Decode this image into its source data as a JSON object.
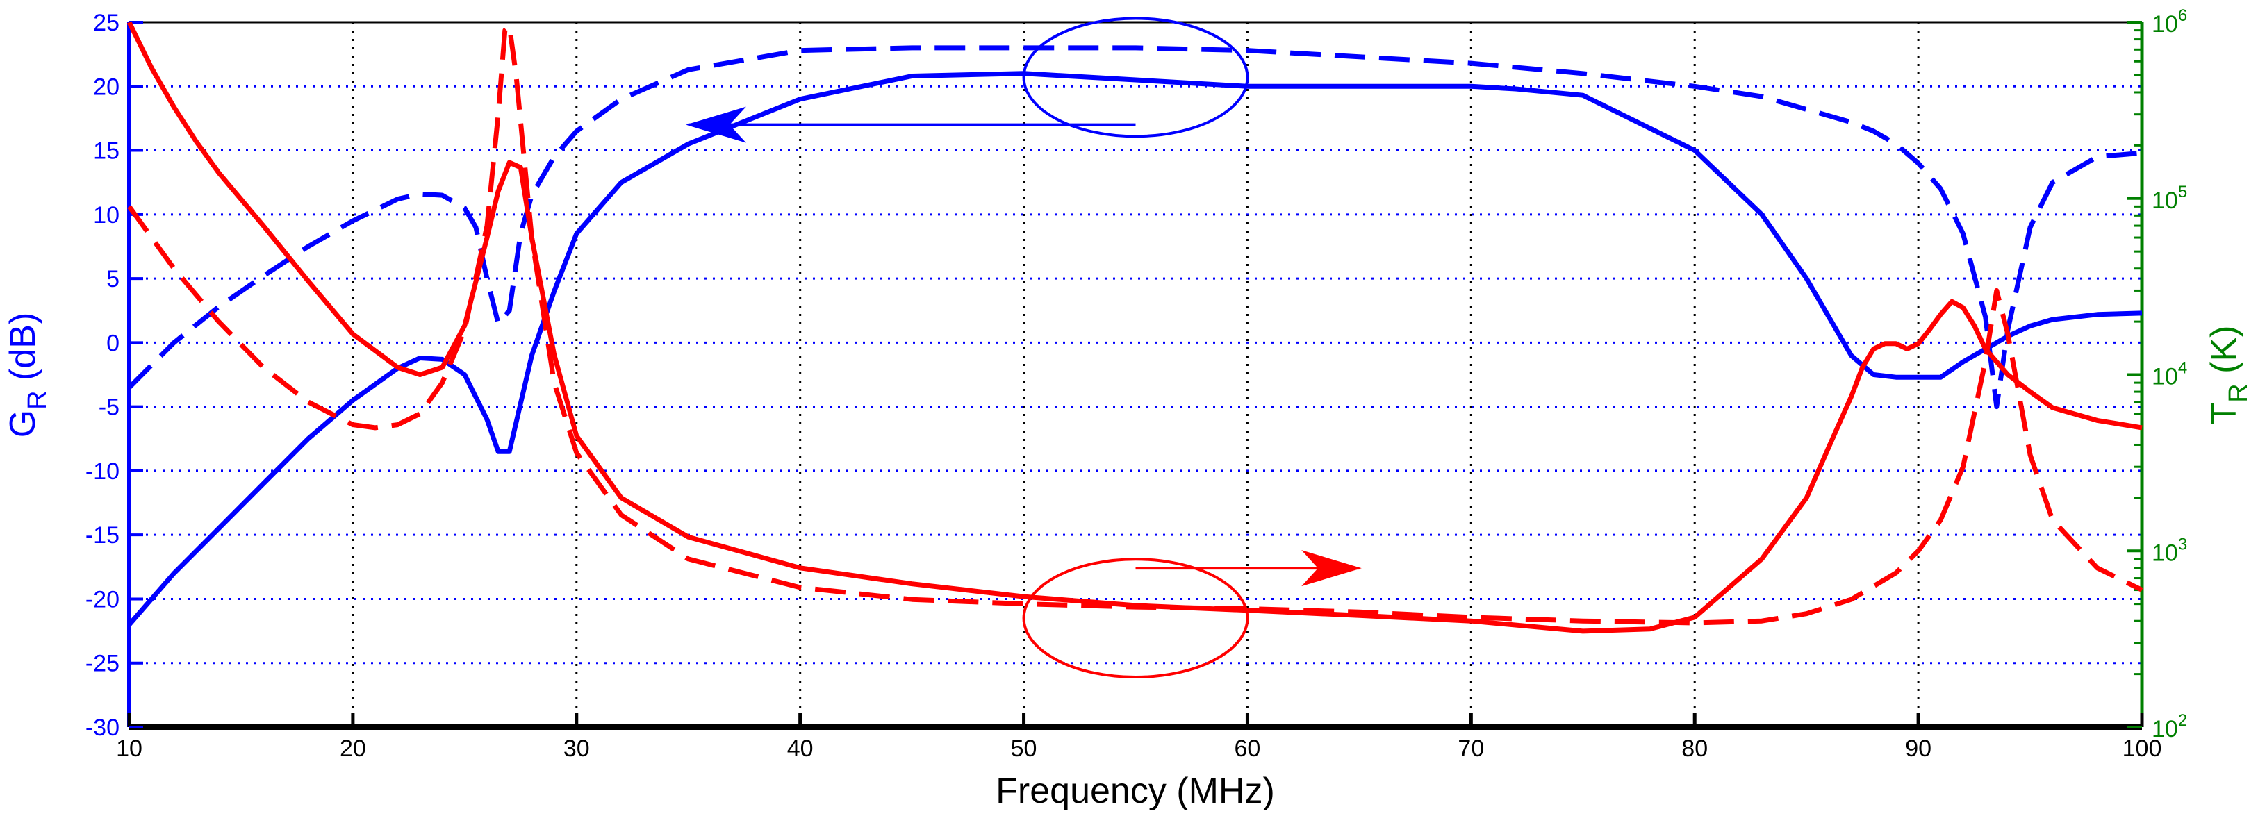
{
  "chart_data": {
    "type": "line",
    "title": "",
    "xlabel": "Frequency (MHz)",
    "ylabel_left": {
      "main": "G",
      "sub": "R",
      "rest": " (dB)"
    },
    "ylabel_right": {
      "main": "T",
      "sub": "R",
      "rest": " (K)"
    },
    "xlim": [
      10,
      100
    ],
    "ylim_left": [
      -30,
      25
    ],
    "ylim_right": [
      100,
      1000000
    ],
    "right_scale": "log",
    "x_ticks": [
      "10",
      "20",
      "30",
      "40",
      "50",
      "60",
      "70",
      "80",
      "90",
      "100"
    ],
    "y_ticks_left": [
      "25",
      "20",
      "15",
      "10",
      "5",
      "0",
      "-5",
      "-10",
      "-15",
      "-20",
      "-25",
      "-30"
    ],
    "y_ticks_right": [
      {
        "base": "10",
        "exp": "6"
      },
      {
        "base": "10",
        "exp": "5"
      },
      {
        "base": "10",
        "exp": "4"
      },
      {
        "base": "10",
        "exp": "3"
      },
      {
        "base": "10",
        "exp": "2"
      }
    ],
    "grid": true,
    "colors": {
      "left_axis": "#0000ff",
      "right_axis": "#008000",
      "gain": "#0000ff",
      "temperature": "#ff0000"
    },
    "series": [
      {
        "axis": "left",
        "color": "#0000ff",
        "style": "solid",
        "x": [
          10,
          12,
          14,
          16,
          18,
          20,
          22,
          23,
          24,
          25,
          26,
          26.5,
          27,
          28,
          29,
          30,
          32,
          35,
          40,
          45,
          50,
          55,
          60,
          65,
          70,
          72,
          75,
          80,
          83,
          85,
          86,
          87,
          88,
          89,
          90,
          91,
          92,
          93,
          93.5,
          94,
          95,
          96,
          98,
          100
        ],
        "y": [
          -22,
          -18,
          -14.5,
          -11,
          -7.5,
          -4.5,
          -2,
          -1.2,
          -1.3,
          -2.5,
          -6,
          -8.5,
          -8.5,
          -1,
          4,
          8.5,
          12.5,
          15.5,
          19,
          20.8,
          21,
          20.5,
          20,
          20,
          20,
          19.8,
          19.3,
          15,
          10,
          5,
          2,
          -1,
          -2.5,
          -2.7,
          -2.7,
          -2.7,
          -1.5,
          -0.5,
          0,
          0.5,
          1.3,
          1.8,
          2.2,
          2.3
        ]
      },
      {
        "axis": "left",
        "color": "#0000ff",
        "style": "dashed",
        "x": [
          10,
          12,
          14,
          16,
          18,
          20,
          22,
          23,
          24,
          25,
          25.5,
          26,
          26.5,
          27,
          27.5,
          28,
          29,
          30,
          32,
          35,
          40,
          45,
          50,
          55,
          60,
          65,
          70,
          75,
          80,
          83,
          85,
          87,
          88,
          89,
          90,
          91,
          92,
          93,
          93.5,
          94,
          95,
          96,
          98,
          100
        ],
        "y": [
          -3.5,
          0,
          2.8,
          5.2,
          7.5,
          9.5,
          11.2,
          11.6,
          11.5,
          10.5,
          9,
          5,
          1.5,
          2.5,
          8.5,
          11.5,
          14.5,
          16.5,
          19,
          21.3,
          22.8,
          23,
          23,
          23,
          22.8,
          22.3,
          21.8,
          21,
          20,
          19.2,
          18.2,
          17.2,
          16.5,
          15.5,
          14,
          12,
          8.5,
          2,
          -5,
          1,
          9,
          12.5,
          14.5,
          14.8
        ]
      },
      {
        "axis": "right",
        "color": "#ff0000",
        "style": "solid",
        "x": [
          10,
          11,
          12,
          13,
          14,
          16,
          18,
          20,
          22,
          23,
          24,
          25,
          26,
          26.5,
          27,
          27.5,
          28,
          29,
          30,
          32,
          35,
          40,
          45,
          50,
          55,
          60,
          65,
          70,
          75,
          78,
          80,
          83,
          85,
          86,
          87,
          87.5,
          88,
          88.5,
          89,
          89.5,
          90,
          90.5,
          91,
          91.5,
          92,
          92.5,
          93,
          94,
          95,
          96,
          98,
          100
        ],
        "y": [
          1000000,
          550000,
          330000,
          210000,
          140000,
          70000,
          34000,
          17000,
          11000,
          10000,
          11000,
          19000,
          60000,
          110000,
          160000,
          150000,
          60000,
          13000,
          4500,
          2000,
          1200,
          800,
          650,
          550,
          490,
          460,
          430,
          400,
          350,
          360,
          420,
          900,
          2000,
          3900,
          7500,
          11000,
          14000,
          15000,
          15000,
          14000,
          15000,
          18000,
          22000,
          26000,
          24000,
          19000,
          14000,
          10000,
          8000,
          6500,
          5500,
          5000
        ]
      },
      {
        "axis": "right",
        "color": "#ff0000",
        "style": "dashed",
        "x": [
          10,
          12,
          14,
          16,
          18,
          20,
          21,
          22,
          23,
          24,
          25,
          26,
          26.5,
          26.8,
          27,
          27.3,
          28,
          29,
          30,
          32,
          35,
          40,
          45,
          50,
          55,
          60,
          65,
          70,
          75,
          80,
          83,
          85,
          87,
          89,
          90,
          91,
          92,
          92.5,
          93,
          93.5,
          94,
          95,
          96,
          98,
          100
        ],
        "y": [
          90000,
          40000,
          20000,
          11000,
          7000,
          5200,
          5000,
          5200,
          6000,
          9000,
          18000,
          70000,
          300000,
          900000,
          950000,
          500000,
          60000,
          9000,
          3600,
          1600,
          900,
          620,
          530,
          500,
          480,
          470,
          450,
          420,
          400,
          390,
          400,
          440,
          530,
          750,
          1000,
          1500,
          3000,
          6000,
          12000,
          30000,
          17000,
          3500,
          1500,
          800,
          600
        ]
      }
    ],
    "annotations": [
      {
        "type": "ellipse",
        "color": "#0000ff",
        "cx": 55,
        "cy": 20.7,
        "rx": 5,
        "ry": 4.6
      },
      {
        "type": "arrow",
        "color": "#0000ff",
        "points": [
          [
            55,
            17
          ],
          [
            35,
            17
          ]
        ],
        "head": "left"
      },
      {
        "type": "ellipse",
        "color": "#ff0000",
        "cx": 55,
        "cy": -21.5,
        "rx": 5,
        "ry": 4.6
      },
      {
        "type": "arrow",
        "color": "#ff0000",
        "points": [
          [
            55,
            -17.6
          ],
          [
            65,
            -17.6
          ]
        ],
        "head": "right"
      }
    ]
  }
}
